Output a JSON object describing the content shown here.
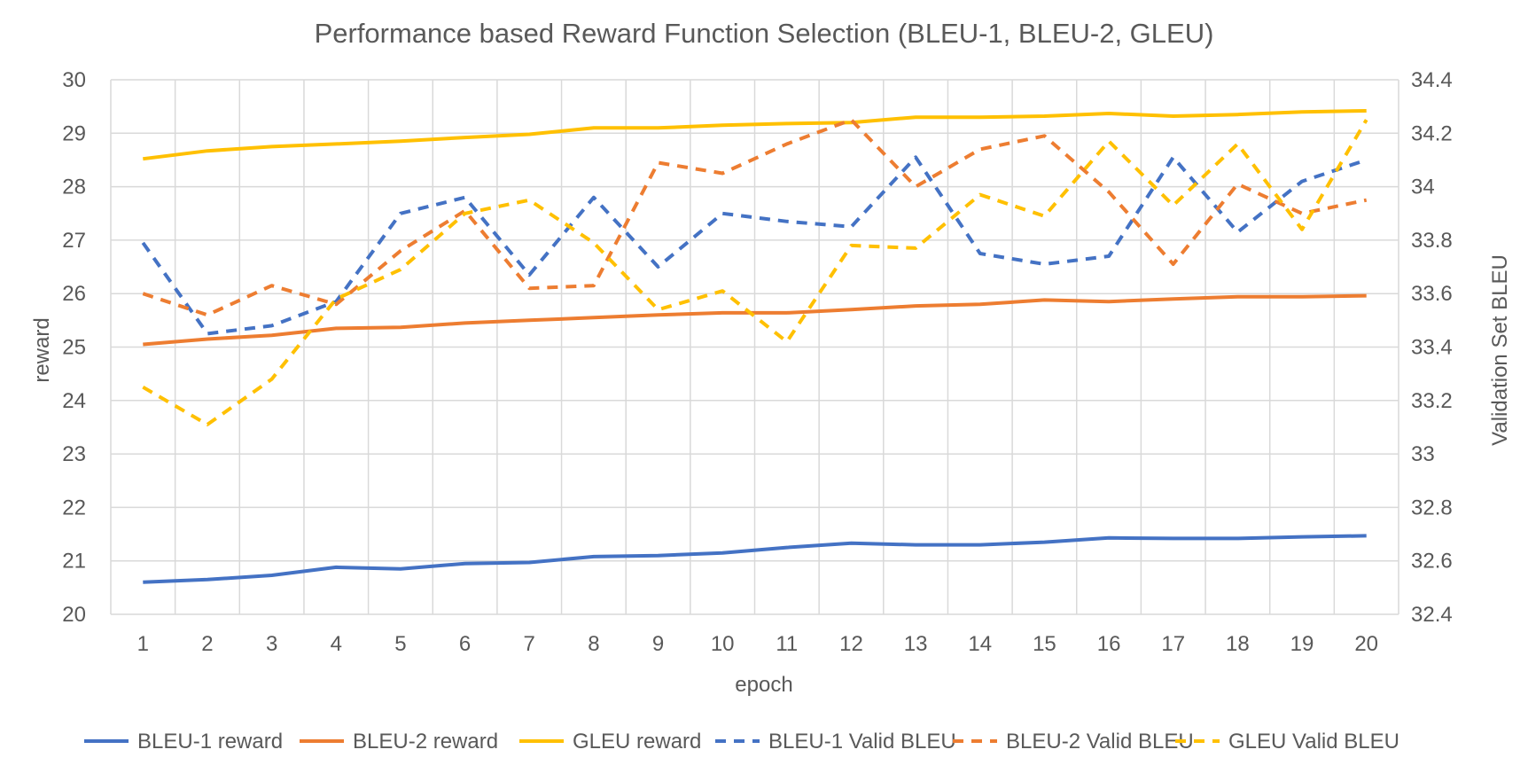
{
  "chart_data": {
    "type": "line",
    "title": "Performance based Reward Function Selection (BLEU-1, BLEU-2, GLEU)",
    "xlabel": "epoch",
    "ylabel": "reward",
    "y2label": "Validation Set BLEU",
    "categories": [
      "1",
      "2",
      "3",
      "4",
      "5",
      "6",
      "7",
      "8",
      "9",
      "10",
      "11",
      "12",
      "13",
      "14",
      "15",
      "16",
      "17",
      "18",
      "19",
      "20"
    ],
    "ylim": [
      20,
      30
    ],
    "yticks": [
      "20",
      "21",
      "22",
      "23",
      "24",
      "25",
      "26",
      "27",
      "28",
      "29",
      "30"
    ],
    "y2lim": [
      32.4,
      34.4
    ],
    "y2ticks": [
      "32.4",
      "32.6",
      "32.8",
      "33",
      "33.2",
      "33.4",
      "33.6",
      "33.8",
      "34",
      "34.2",
      "34.4"
    ],
    "grid": true,
    "legend_position": "bottom",
    "series": [
      {
        "name": "BLEU-1 reward",
        "axis": "left",
        "style": "solid",
        "color": "#4472C4",
        "values": [
          20.6,
          20.65,
          20.73,
          20.88,
          20.85,
          20.95,
          20.97,
          21.08,
          21.1,
          21.15,
          21.25,
          21.33,
          21.3,
          21.3,
          21.35,
          21.43,
          21.42,
          21.42,
          21.45,
          21.47
        ]
      },
      {
        "name": "BLEU-2 reward",
        "axis": "left",
        "style": "solid",
        "color": "#ED7D31",
        "values": [
          25.05,
          25.15,
          25.22,
          25.35,
          25.37,
          25.45,
          25.5,
          25.55,
          25.6,
          25.64,
          25.64,
          25.7,
          25.77,
          25.8,
          25.88,
          25.85,
          25.9,
          25.94,
          25.94,
          25.96
        ]
      },
      {
        "name": "GLEU reward",
        "axis": "left",
        "style": "solid",
        "color": "#FFC000",
        "values": [
          28.52,
          28.67,
          28.75,
          28.8,
          28.85,
          28.92,
          28.98,
          29.1,
          29.1,
          29.15,
          29.18,
          29.2,
          29.3,
          29.3,
          29.32,
          29.37,
          29.32,
          29.35,
          29.4,
          29.42
        ]
      },
      {
        "name": "BLEU-1 Valid BLEU",
        "axis": "right",
        "style": "dashed",
        "color": "#4472C4",
        "values": [
          33.79,
          33.45,
          33.48,
          33.57,
          33.9,
          33.96,
          33.67,
          33.96,
          33.7,
          33.9,
          33.87,
          33.85,
          34.11,
          33.75,
          33.71,
          33.74,
          34.11,
          33.83,
          34.02,
          34.1
        ]
      },
      {
        "name": "BLEU-2 Valid BLEU",
        "axis": "right",
        "style": "dashed",
        "color": "#ED7D31",
        "values": [
          33.6,
          33.52,
          33.63,
          33.56,
          33.76,
          33.91,
          33.62,
          33.63,
          34.09,
          34.05,
          34.16,
          34.25,
          34.0,
          34.14,
          34.19,
          33.98,
          33.71,
          34.01,
          33.9,
          33.95
        ]
      },
      {
        "name": "GLEU Valid BLEU",
        "axis": "right",
        "style": "dashed",
        "color": "#FFC000",
        "values": [
          33.25,
          33.11,
          33.28,
          33.58,
          33.69,
          33.9,
          33.95,
          33.79,
          33.54,
          33.61,
          33.42,
          33.78,
          33.77,
          33.97,
          33.89,
          34.17,
          33.93,
          34.16,
          33.84,
          34.25
        ]
      }
    ]
  }
}
